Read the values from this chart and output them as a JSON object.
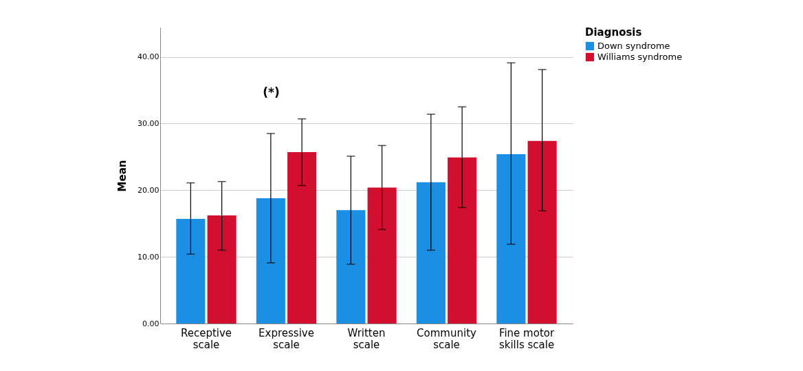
{
  "chart_data": {
    "type": "bar",
    "ylabel": "Mean",
    "legend_title": "Diagnosis",
    "categories": [
      "Receptive scale",
      "Expressive scale",
      "Written scale",
      "Community scale",
      "Fine motor skills scale"
    ],
    "series": [
      {
        "name": "Down syndrome",
        "color": "#1a8fe3",
        "values": [
          15.7,
          18.8,
          17.0,
          21.2,
          25.4
        ],
        "errors": [
          [
            10.4,
            21.1
          ],
          [
            9.1,
            28.5
          ],
          [
            8.9,
            25.1
          ],
          [
            11.0,
            31.4
          ],
          [
            11.9,
            39.1
          ]
        ]
      },
      {
        "name": "Williams syndrome",
        "color": "#d20f2e",
        "values": [
          16.2,
          25.7,
          20.4,
          24.9,
          27.4
        ],
        "errors": [
          [
            11.0,
            21.3
          ],
          [
            20.7,
            30.7
          ],
          [
            14.1,
            26.7
          ],
          [
            17.4,
            32.5
          ],
          [
            16.9,
            38.1
          ]
        ]
      }
    ],
    "annotations": [
      "(*)"
    ],
    "ylim": [
      0,
      44.4
    ],
    "yticks": [
      {
        "value": 0,
        "label": "0.00"
      },
      {
        "value": 10,
        "label": "10.00"
      },
      {
        "value": 20,
        "label": "20.00"
      },
      {
        "value": 30,
        "label": "30.00"
      },
      {
        "value": 40,
        "label": "40.00"
      }
    ],
    "grid": "y",
    "legend": "top right"
  }
}
